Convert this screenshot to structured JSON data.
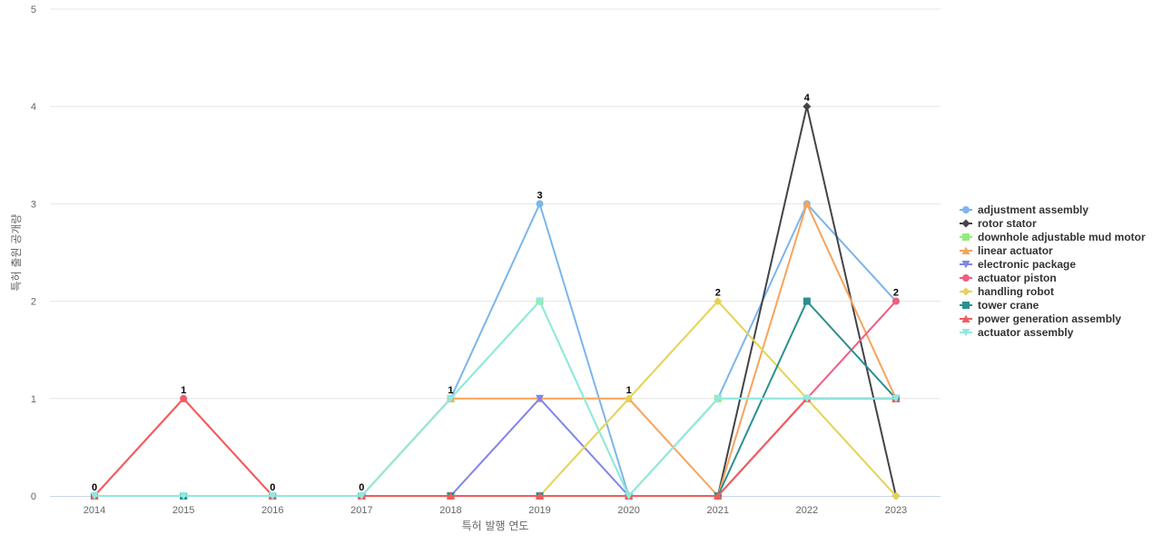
{
  "chart_data": {
    "type": "line",
    "title": "",
    "xlabel": "특허 발행 연도",
    "ylabel": "특허 출원 공개량",
    "categories": [
      "2014",
      "2015",
      "2016",
      "2017",
      "2018",
      "2019",
      "2020",
      "2021",
      "2022",
      "2023"
    ],
    "yticks": [
      "0",
      "1",
      "2",
      "3",
      "4",
      "5"
    ],
    "ylim": [
      0,
      5
    ],
    "grid": true,
    "legend_position": "right",
    "series": [
      {
        "name": "adjustment assembly",
        "color": "#7cb5ec",
        "marker": "circle",
        "values": [
          0,
          0,
          0,
          0,
          1,
          3,
          0,
          1,
          3,
          2
        ]
      },
      {
        "name": "rotor stator",
        "color": "#434348",
        "marker": "diamond",
        "values": [
          0,
          0,
          0,
          0,
          0,
          0,
          0,
          0,
          4,
          0
        ]
      },
      {
        "name": "downhole adjustable mud motor",
        "color": "#90ed7d",
        "marker": "square",
        "values": [
          0,
          0,
          0,
          0,
          1,
          2,
          0,
          1,
          1,
          1
        ]
      },
      {
        "name": "linear actuator",
        "color": "#f7a35c",
        "marker": "triangle",
        "values": [
          0,
          0,
          0,
          0,
          1,
          1,
          1,
          0,
          3,
          1
        ]
      },
      {
        "name": "electronic package",
        "color": "#8085e9",
        "marker": "triangle-down",
        "values": [
          0,
          0,
          0,
          0,
          0,
          1,
          0,
          0,
          1,
          1
        ]
      },
      {
        "name": "actuator piston",
        "color": "#f15c80",
        "marker": "circle",
        "values": [
          0,
          1,
          0,
          0,
          0,
          0,
          0,
          0,
          1,
          2
        ]
      },
      {
        "name": "handling robot",
        "color": "#e4d354",
        "marker": "diamond",
        "values": [
          0,
          0,
          0,
          0,
          0,
          0,
          1,
          2,
          1,
          0
        ]
      },
      {
        "name": "tower crane",
        "color": "#2b908f",
        "marker": "square",
        "values": [
          0,
          0,
          0,
          0,
          0,
          0,
          0,
          0,
          2,
          1
        ]
      },
      {
        "name": "power generation assembly",
        "color": "#f45b5b",
        "marker": "triangle",
        "values": [
          0,
          1,
          0,
          0,
          0,
          0,
          0,
          0,
          1,
          1
        ]
      },
      {
        "name": "actuator assembly",
        "color": "#91e8e1",
        "marker": "triangle-down",
        "values": [
          0,
          0,
          0,
          0,
          1,
          2,
          0,
          1,
          1,
          1
        ]
      }
    ],
    "data_labels": [
      "0",
      "1",
      "0",
      "0",
      "1",
      "3",
      "1",
      "2",
      "4",
      "2"
    ]
  }
}
